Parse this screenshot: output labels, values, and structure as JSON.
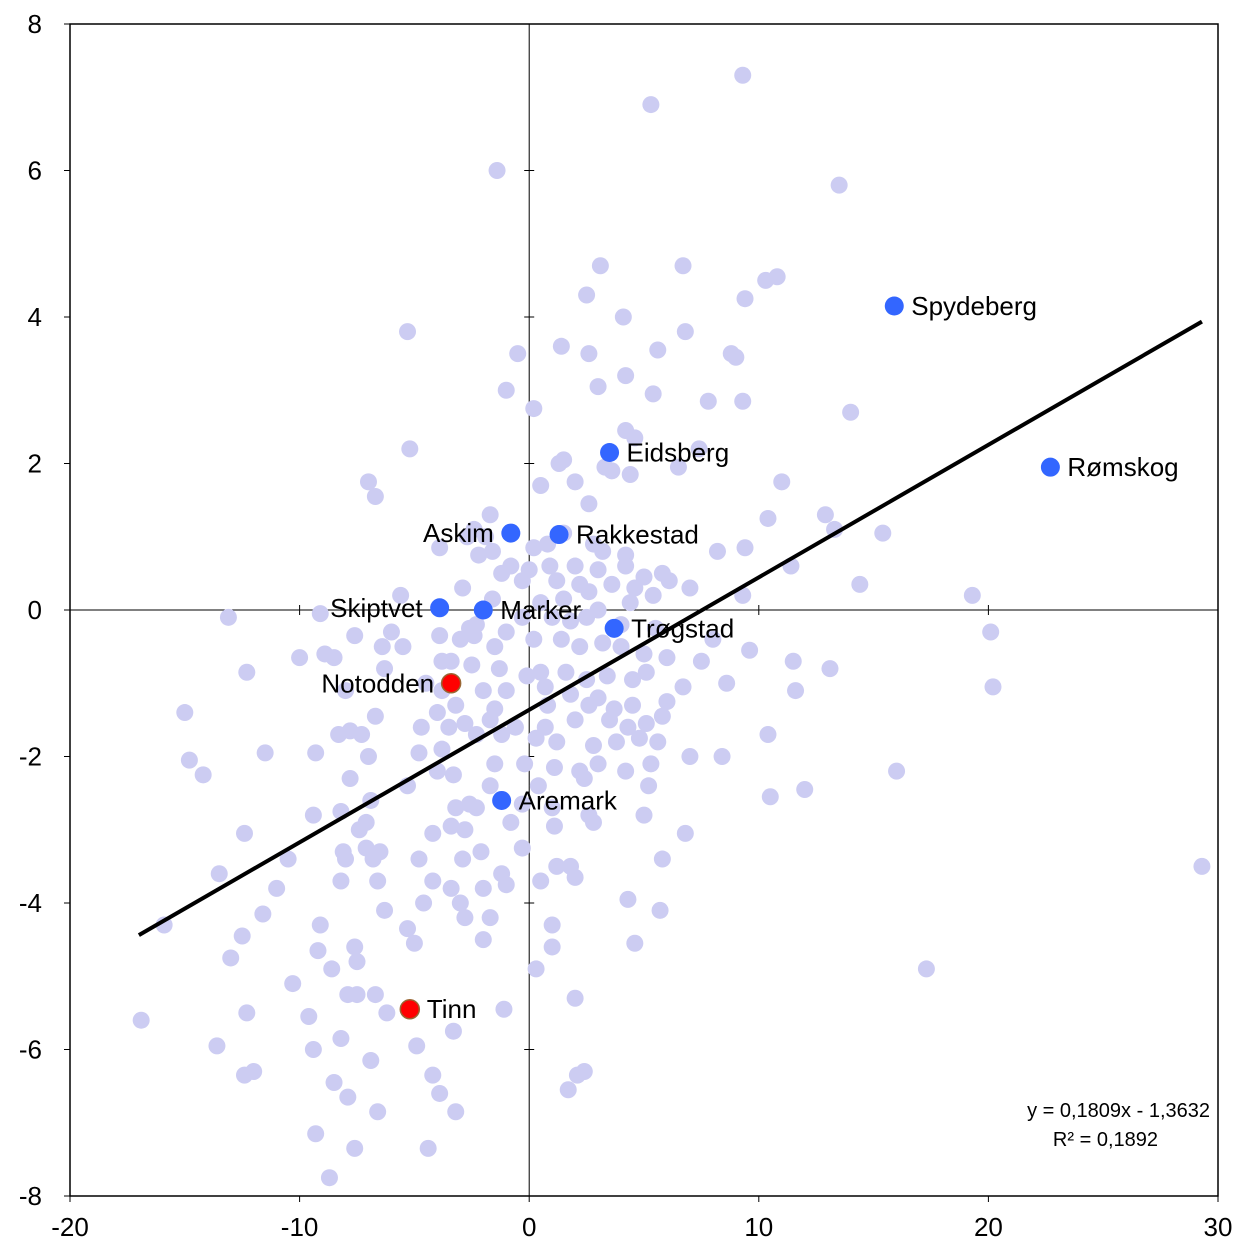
{
  "chart_data": {
    "type": "scatter",
    "title": "",
    "xlabel": "",
    "ylabel": "",
    "xlim": [
      -20,
      30
    ],
    "ylim": [
      -8,
      8
    ],
    "x_ticks": [
      -20,
      -10,
      0,
      10,
      20,
      30
    ],
    "y_ticks": [
      -8,
      -6,
      -4,
      -2,
      0,
      2,
      4,
      6,
      8
    ],
    "grid": false,
    "colors": {
      "background_points": "#ccccf2",
      "highlight_blue": "#3366ff",
      "highlight_red": "#ff0000",
      "red_outline": "#996633",
      "trendline": "#000000",
      "axis": "#000000"
    },
    "trendline": {
      "slope": 0.1809,
      "intercept": -1.3632,
      "x_range": [
        -17,
        29.3
      ],
      "equation": "y = 0,1809x - 1,3632",
      "r_squared": "R² = 0,1892"
    },
    "highlighted_points": [
      {
        "name": "Spydeberg",
        "x": 15.9,
        "y": 4.15,
        "color": "blue",
        "label_side": "right"
      },
      {
        "name": "Rømskog",
        "x": 22.7,
        "y": 1.95,
        "color": "blue",
        "label_side": "right"
      },
      {
        "name": "Eidsberg",
        "x": 3.5,
        "y": 2.15,
        "color": "blue",
        "label_side": "right"
      },
      {
        "name": "Rakkestad",
        "x": 1.3,
        "y": 1.03,
        "color": "blue",
        "label_side": "right"
      },
      {
        "name": "Askim",
        "x": -0.8,
        "y": 1.05,
        "color": "blue",
        "label_side": "left"
      },
      {
        "name": "Marker",
        "x": -2.0,
        "y": 0.0,
        "color": "blue",
        "label_side": "right"
      },
      {
        "name": "Skiptvet",
        "x": -3.9,
        "y": 0.03,
        "color": "blue",
        "label_side": "left"
      },
      {
        "name": "Trøgstad",
        "x": 3.7,
        "y": -0.25,
        "color": "blue",
        "label_side": "right"
      },
      {
        "name": "Aremark",
        "x": -1.2,
        "y": -2.6,
        "color": "blue",
        "label_side": "right"
      },
      {
        "name": "Notodden",
        "x": -3.4,
        "y": -1.0,
        "color": "red",
        "label_side": "left"
      },
      {
        "name": "Tinn",
        "x": -5.2,
        "y": -5.45,
        "color": "red",
        "label_side": "right"
      }
    ],
    "background_points": [
      [
        9.3,
        7.3
      ],
      [
        5.3,
        6.9
      ],
      [
        -1.4,
        6.0
      ],
      [
        13.5,
        5.8
      ],
      [
        3.1,
        4.7
      ],
      [
        6.7,
        4.7
      ],
      [
        10.8,
        4.55
      ],
      [
        10.3,
        4.5
      ],
      [
        2.5,
        4.3
      ],
      [
        9.4,
        4.25
      ],
      [
        4.1,
        4.0
      ],
      [
        -5.3,
        3.8
      ],
      [
        6.8,
        3.8
      ],
      [
        1.4,
        3.6
      ],
      [
        5.6,
        3.55
      ],
      [
        2.6,
        3.5
      ],
      [
        8.8,
        3.5
      ],
      [
        9.0,
        3.45
      ],
      [
        -0.5,
        3.5
      ],
      [
        4.2,
        3.2
      ],
      [
        3.0,
        3.05
      ],
      [
        5.4,
        2.95
      ],
      [
        -1.0,
        3.0
      ],
      [
        0.2,
        2.75
      ],
      [
        7.8,
        2.85
      ],
      [
        9.3,
        2.85
      ],
      [
        14.0,
        2.7
      ],
      [
        4.2,
        2.45
      ],
      [
        4.6,
        2.35
      ],
      [
        -5.2,
        2.2
      ],
      [
        1.5,
        2.05
      ],
      [
        1.3,
        2.0
      ],
      [
        3.3,
        1.95
      ],
      [
        3.6,
        1.9
      ],
      [
        4.4,
        1.85
      ],
      [
        6.5,
        1.95
      ],
      [
        2.0,
        1.75
      ],
      [
        0.5,
        1.7
      ],
      [
        11.0,
        1.75
      ],
      [
        -7.0,
        1.75
      ],
      [
        -6.7,
        1.55
      ],
      [
        2.6,
        1.45
      ],
      [
        -1.7,
        1.3
      ],
      [
        -2.4,
        1.1
      ],
      [
        -2.7,
        1.0
      ],
      [
        -1.9,
        1.0
      ],
      [
        0.8,
        0.9
      ],
      [
        1.5,
        1.05
      ],
      [
        -1.6,
        0.8
      ],
      [
        0.2,
        0.85
      ],
      [
        2.8,
        0.9
      ],
      [
        3.2,
        0.8
      ],
      [
        4.2,
        0.75
      ],
      [
        8.2,
        0.8
      ],
      [
        9.4,
        0.85
      ],
      [
        -3.9,
        0.85
      ],
      [
        -2.2,
        0.75
      ],
      [
        -0.8,
        0.6
      ],
      [
        0.0,
        0.55
      ],
      [
        0.9,
        0.6
      ],
      [
        2.0,
        0.6
      ],
      [
        3.0,
        0.55
      ],
      [
        4.2,
        0.6
      ],
      [
        5.0,
        0.45
      ],
      [
        5.8,
        0.5
      ],
      [
        6.1,
        0.4
      ],
      [
        7.0,
        0.3
      ],
      [
        -1.2,
        0.5
      ],
      [
        -0.3,
        0.4
      ],
      [
        1.2,
        0.4
      ],
      [
        2.2,
        0.35
      ],
      [
        2.6,
        0.25
      ],
      [
        3.6,
        0.35
      ],
      [
        4.6,
        0.3
      ],
      [
        5.4,
        0.2
      ],
      [
        -2.9,
        0.3
      ],
      [
        -1.6,
        0.15
      ],
      [
        0.5,
        0.1
      ],
      [
        1.5,
        0.15
      ],
      [
        3.0,
        0.0
      ],
      [
        4.4,
        0.1
      ],
      [
        -0.3,
        -0.1
      ],
      [
        1.0,
        -0.1
      ],
      [
        1.8,
        -0.15
      ],
      [
        2.5,
        -0.1
      ],
      [
        4.0,
        -0.2
      ],
      [
        5.5,
        -0.25
      ],
      [
        -2.3,
        -0.2
      ],
      [
        -1.0,
        -0.3
      ],
      [
        -3.9,
        -0.35
      ],
      [
        -6.0,
        -0.3
      ],
      [
        -7.6,
        -0.35
      ],
      [
        -9.1,
        -0.05
      ],
      [
        -13.1,
        -0.1
      ],
      [
        -5.6,
        0.2
      ],
      [
        -3.0,
        -0.4
      ],
      [
        -2.6,
        -0.25
      ],
      [
        -1.5,
        -0.5
      ],
      [
        0.2,
        -0.4
      ],
      [
        1.4,
        -0.4
      ],
      [
        2.2,
        -0.5
      ],
      [
        3.2,
        -0.45
      ],
      [
        4.0,
        -0.5
      ],
      [
        5.0,
        -0.6
      ],
      [
        6.0,
        -0.65
      ],
      [
        7.5,
        -0.7
      ],
      [
        9.6,
        -0.55
      ],
      [
        11.5,
        -0.7
      ],
      [
        13.1,
        -0.8
      ],
      [
        -6.4,
        -0.5
      ],
      [
        -5.5,
        -0.5
      ],
      [
        -3.8,
        -0.7
      ],
      [
        -3.4,
        -0.7
      ],
      [
        -2.5,
        -0.75
      ],
      [
        -1.3,
        -0.8
      ],
      [
        -0.1,
        -0.9
      ],
      [
        0.5,
        -0.85
      ],
      [
        1.6,
        -0.85
      ],
      [
        2.5,
        -0.95
      ],
      [
        3.4,
        -0.9
      ],
      [
        4.5,
        -0.95
      ],
      [
        5.1,
        -0.85
      ],
      [
        -8.5,
        -0.65
      ],
      [
        -8.9,
        -0.6
      ],
      [
        -12.3,
        -0.85
      ],
      [
        -2.0,
        -1.1
      ],
      [
        -1.0,
        -1.1
      ],
      [
        0.7,
        -1.05
      ],
      [
        1.8,
        -1.15
      ],
      [
        3.0,
        -1.2
      ],
      [
        4.5,
        -1.3
      ],
      [
        6.0,
        -1.25
      ],
      [
        6.7,
        -1.05
      ],
      [
        8.6,
        -1.0
      ],
      [
        11.6,
        -1.1
      ],
      [
        -3.8,
        -1.1
      ],
      [
        -3.2,
        -1.3
      ],
      [
        -4.0,
        -1.4
      ],
      [
        -6.7,
        -1.45
      ],
      [
        -8.0,
        -1.1
      ],
      [
        -15.0,
        -1.4
      ],
      [
        -2.8,
        -1.55
      ],
      [
        -1.7,
        -1.5
      ],
      [
        -0.6,
        -1.6
      ],
      [
        0.7,
        -1.6
      ],
      [
        2.0,
        -1.5
      ],
      [
        3.5,
        -1.5
      ],
      [
        4.3,
        -1.6
      ],
      [
        5.1,
        -1.55
      ],
      [
        5.8,
        -1.45
      ],
      [
        -3.5,
        -1.6
      ],
      [
        -4.7,
        -1.6
      ],
      [
        -7.3,
        -1.7
      ],
      [
        -8.3,
        -1.7
      ],
      [
        -7.8,
        -1.65
      ],
      [
        -2.3,
        -1.7
      ],
      [
        -1.2,
        -1.7
      ],
      [
        0.3,
        -1.75
      ],
      [
        1.2,
        -1.8
      ],
      [
        2.8,
        -1.85
      ],
      [
        3.8,
        -1.8
      ],
      [
        4.8,
        -1.75
      ],
      [
        5.6,
        -1.8
      ],
      [
        10.4,
        -1.7
      ],
      [
        -3.8,
        -1.9
      ],
      [
        -4.8,
        -1.95
      ],
      [
        -7.0,
        -2.0
      ],
      [
        -9.3,
        -1.95
      ],
      [
        -11.5,
        -1.95
      ],
      [
        -1.5,
        -2.1
      ],
      [
        -0.2,
        -2.1
      ],
      [
        1.1,
        -2.15
      ],
      [
        2.2,
        -2.2
      ],
      [
        3.0,
        -2.1
      ],
      [
        4.2,
        -2.2
      ],
      [
        5.3,
        -2.1
      ],
      [
        7.0,
        -2.0
      ],
      [
        8.4,
        -2.0
      ],
      [
        -3.3,
        -2.25
      ],
      [
        -5.3,
        -2.4
      ],
      [
        -7.8,
        -2.3
      ],
      [
        -14.8,
        -2.05
      ],
      [
        -14.2,
        -2.25
      ],
      [
        -1.7,
        -2.4
      ],
      [
        0.4,
        -2.4
      ],
      [
        2.4,
        -2.3
      ],
      [
        5.2,
        -2.4
      ],
      [
        -2.3,
        -2.7
      ],
      [
        -3.2,
        -2.7
      ],
      [
        -6.9,
        -2.6
      ],
      [
        -8.2,
        -2.75
      ],
      [
        -9.4,
        -2.8
      ],
      [
        -12.4,
        -3.05
      ],
      [
        -0.3,
        -2.65
      ],
      [
        1.0,
        -2.7
      ],
      [
        2.6,
        -2.8
      ],
      [
        5.0,
        -2.8
      ],
      [
        10.5,
        -2.55
      ],
      [
        12.0,
        -2.45
      ],
      [
        16.0,
        -2.2
      ],
      [
        -0.8,
        -2.9
      ],
      [
        1.1,
        -2.95
      ],
      [
        2.8,
        -2.9
      ],
      [
        6.8,
        -3.05
      ],
      [
        -3.4,
        -2.95
      ],
      [
        -2.8,
        -3.0
      ],
      [
        -4.2,
        -3.05
      ],
      [
        -7.1,
        -2.9
      ],
      [
        -7.4,
        -3.0
      ],
      [
        -8.1,
        -3.3
      ],
      [
        -8.0,
        -3.4
      ],
      [
        -6.5,
        -3.3
      ],
      [
        -0.3,
        -3.25
      ],
      [
        1.2,
        -3.5
      ],
      [
        1.8,
        -3.5
      ],
      [
        -2.1,
        -3.3
      ],
      [
        -2.9,
        -3.4
      ],
      [
        -4.8,
        -3.4
      ],
      [
        -6.8,
        -3.4
      ],
      [
        -7.1,
        -3.25
      ],
      [
        -10.5,
        -3.4
      ],
      [
        -13.5,
        -3.6
      ],
      [
        -1.2,
        -3.6
      ],
      [
        0.5,
        -3.7
      ],
      [
        2.0,
        -3.65
      ],
      [
        5.8,
        -3.4
      ],
      [
        -2.0,
        -3.8
      ],
      [
        -3.4,
        -3.8
      ],
      [
        -4.2,
        -3.7
      ],
      [
        -6.6,
        -3.7
      ],
      [
        -8.2,
        -3.7
      ],
      [
        -11.0,
        -3.8
      ],
      [
        -1.0,
        -3.75
      ],
      [
        -3.0,
        -4.0
      ],
      [
        -4.6,
        -4.0
      ],
      [
        -6.3,
        -4.1
      ],
      [
        -9.1,
        -4.3
      ],
      [
        -11.6,
        -4.15
      ],
      [
        4.3,
        -3.95
      ],
      [
        5.7,
        -4.1
      ],
      [
        -1.7,
        -4.2
      ],
      [
        -2.8,
        -4.2
      ],
      [
        -5.3,
        -4.35
      ],
      [
        -12.5,
        -4.45
      ],
      [
        -15.9,
        -4.3
      ],
      [
        1.0,
        -4.3
      ],
      [
        -2.0,
        -4.5
      ],
      [
        -5.0,
        -4.55
      ],
      [
        -7.6,
        -4.6
      ],
      [
        -9.2,
        -4.65
      ],
      [
        4.6,
        -4.55
      ],
      [
        1.0,
        -4.6
      ],
      [
        -7.5,
        -4.8
      ],
      [
        -13.0,
        -4.75
      ],
      [
        0.3,
        -4.9
      ],
      [
        -8.6,
        -4.9
      ],
      [
        17.3,
        -4.9
      ],
      [
        -10.3,
        -5.1
      ],
      [
        -7.9,
        -5.25
      ],
      [
        -6.7,
        -5.25
      ],
      [
        -7.5,
        -5.25
      ],
      [
        -1.1,
        -5.45
      ],
      [
        2.0,
        -5.3
      ],
      [
        -6.2,
        -5.5
      ],
      [
        -12.3,
        -5.5
      ],
      [
        -16.9,
        -5.6
      ],
      [
        -9.6,
        -5.55
      ],
      [
        -3.3,
        -5.75
      ],
      [
        -4.9,
        -5.95
      ],
      [
        -8.2,
        -5.85
      ],
      [
        -9.4,
        -6.0
      ],
      [
        -13.6,
        -5.95
      ],
      [
        -6.9,
        -6.15
      ],
      [
        2.4,
        -6.3
      ],
      [
        2.1,
        -6.35
      ],
      [
        -12.0,
        -6.3
      ],
      [
        -12.4,
        -6.35
      ],
      [
        -4.2,
        -6.35
      ],
      [
        -8.5,
        -6.45
      ],
      [
        -3.9,
        -6.6
      ],
      [
        -7.9,
        -6.65
      ],
      [
        1.7,
        -6.55
      ],
      [
        -6.6,
        -6.85
      ],
      [
        -3.2,
        -6.85
      ],
      [
        -9.3,
        -7.15
      ],
      [
        -7.6,
        -7.35
      ],
      [
        -4.4,
        -7.35
      ],
      [
        -8.7,
        -7.75
      ],
      [
        -2.6,
        -2.65
      ],
      [
        -4.0,
        -2.2
      ],
      [
        -2.4,
        -0.35
      ],
      [
        -1.5,
        -1.35
      ],
      [
        0.8,
        -1.3
      ],
      [
        2.6,
        -1.3
      ],
      [
        3.7,
        -1.35
      ],
      [
        -4.5,
        -1.0
      ],
      [
        -6.3,
        -0.8
      ],
      [
        -10.0,
        -0.65
      ],
      [
        8.0,
        -0.4
      ],
      [
        12.9,
        1.3
      ],
      [
        13.3,
        1.1
      ],
      [
        15.4,
        1.05
      ],
      [
        14.4,
        0.35
      ],
      [
        19.3,
        0.2
      ],
      [
        20.1,
        -0.3
      ],
      [
        20.2,
        -1.05
      ],
      [
        29.3,
        -3.5
      ],
      [
        11.4,
        0.6
      ],
      [
        9.3,
        0.2
      ],
      [
        10.4,
        1.25
      ],
      [
        7.4,
        2.2
      ]
    ]
  }
}
